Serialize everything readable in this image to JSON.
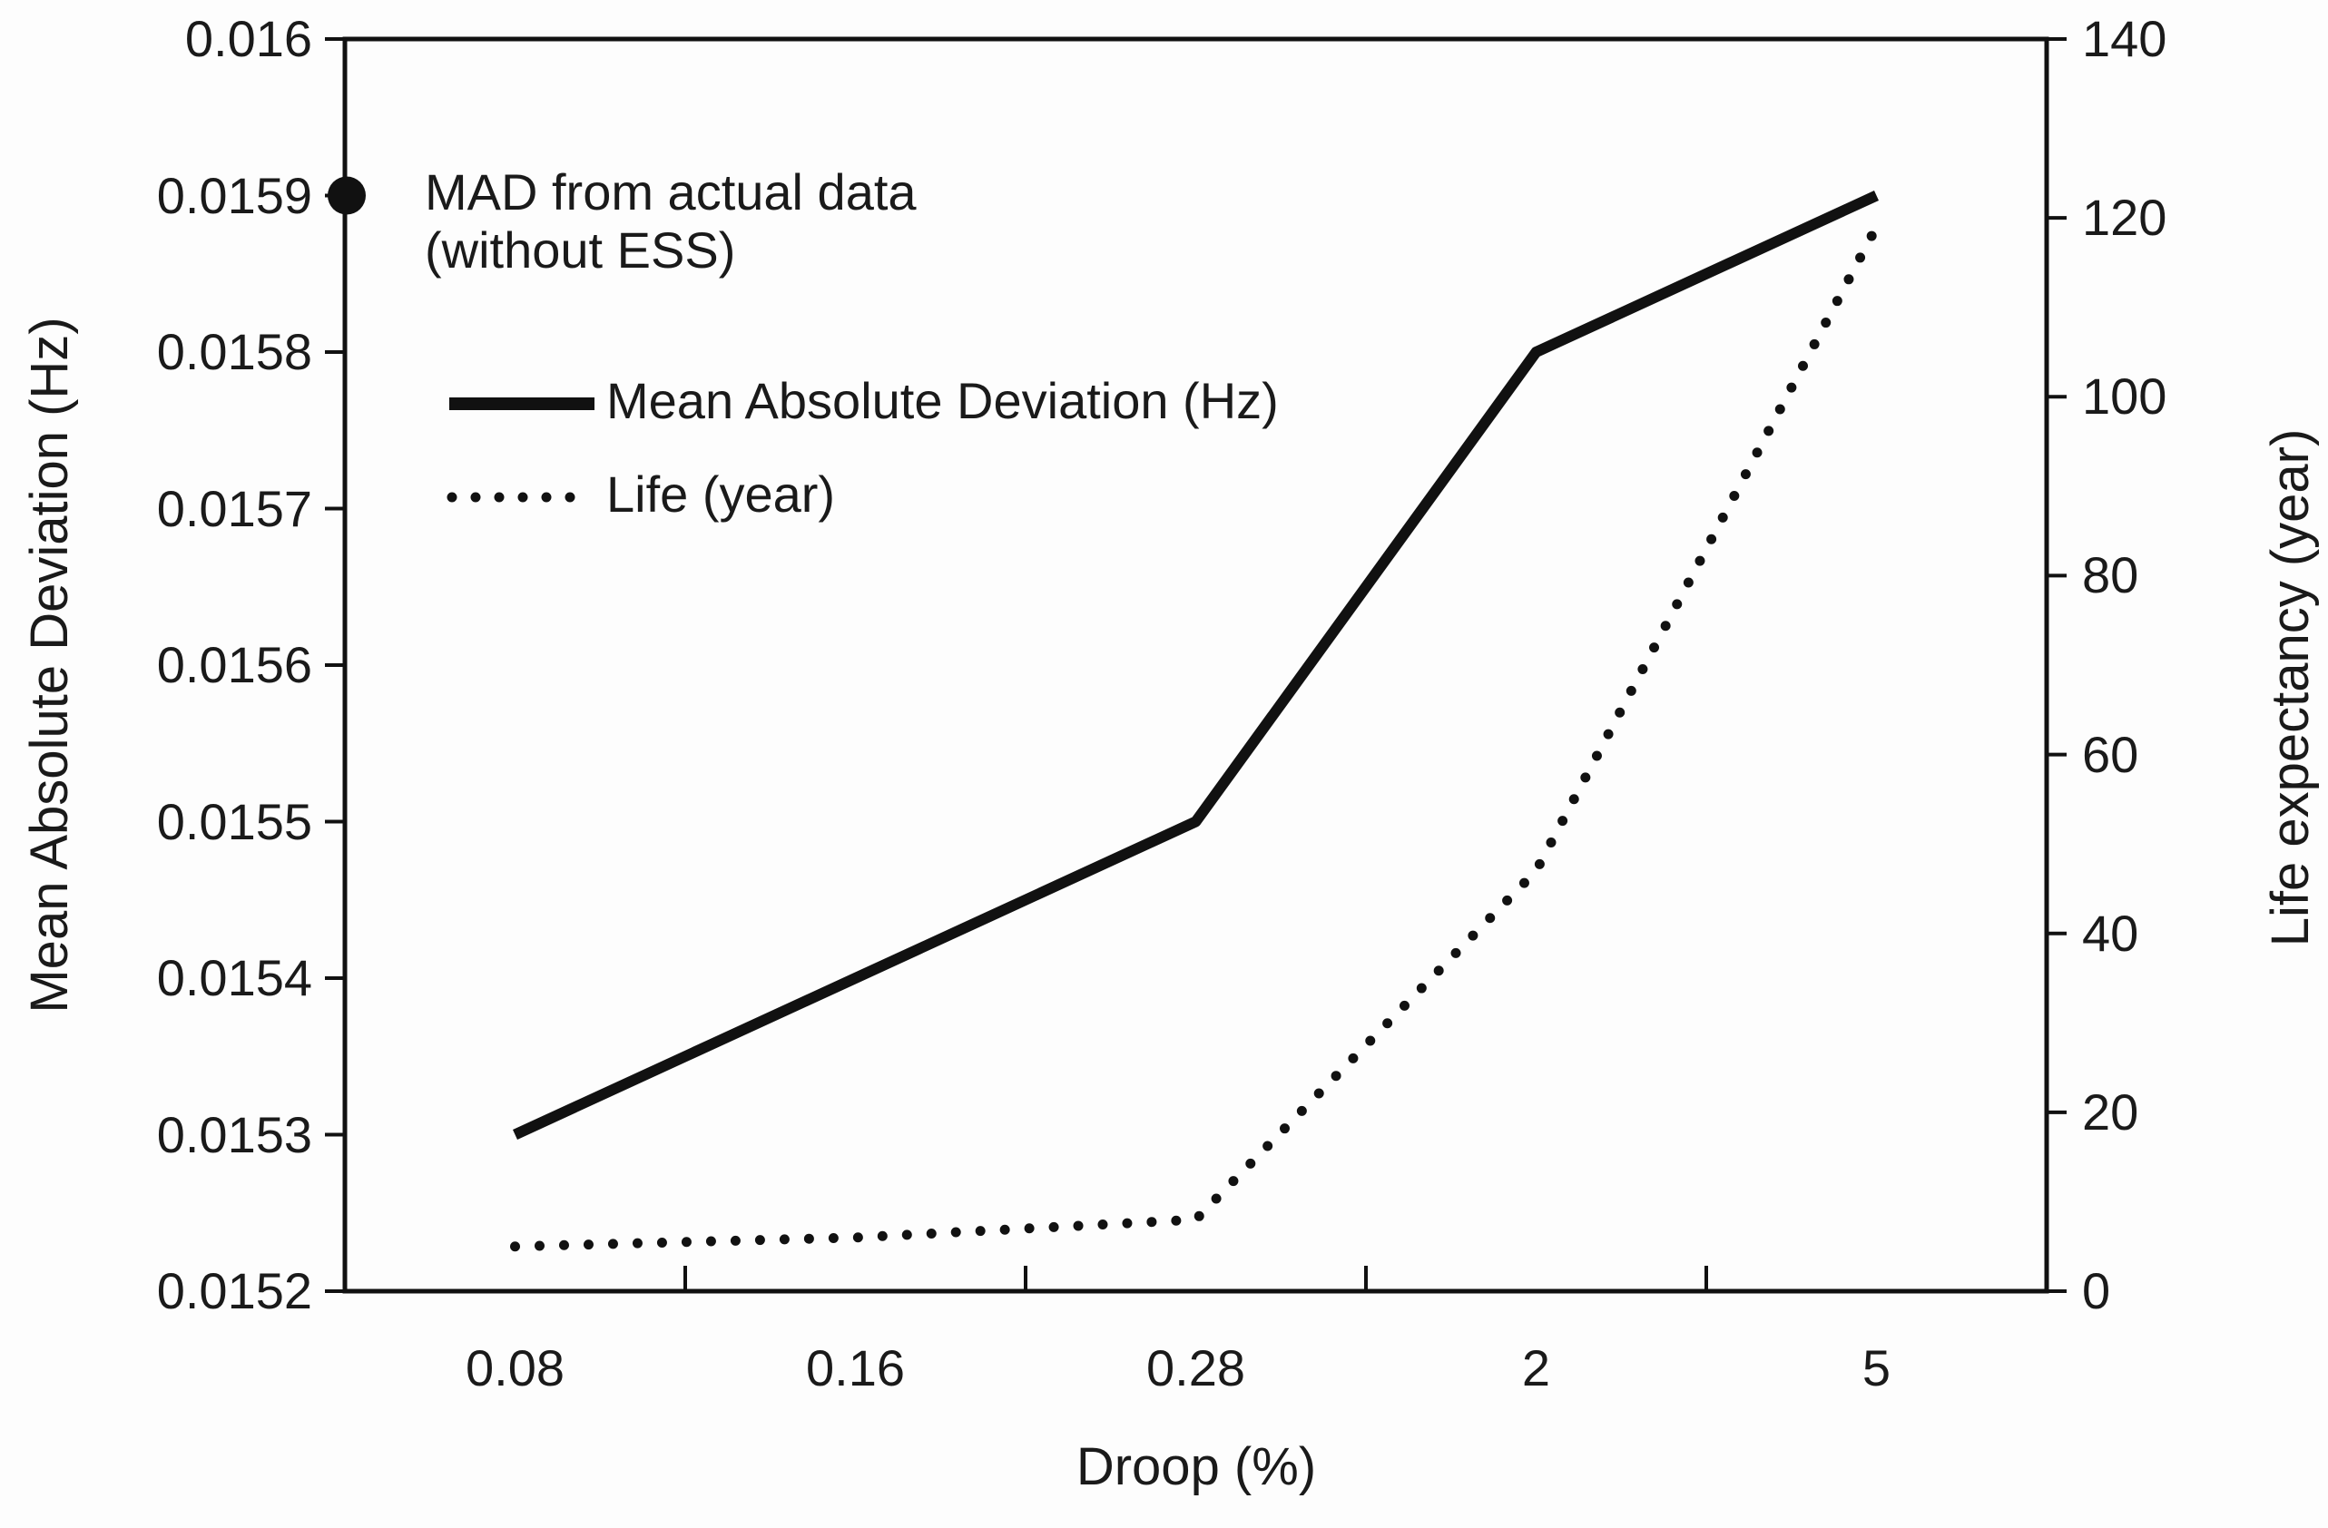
{
  "chart_data": {
    "type": "line",
    "xlabel": "Droop (%)",
    "categories": [
      "0.08",
      "0.16",
      "0.28",
      "2",
      "5"
    ],
    "left_axis": {
      "label": "Mean Absolute Deviation (Hz)",
      "min": 0.0152,
      "max": 0.016,
      "ticks": [
        "0.016",
        "0.0159",
        "0.0158",
        "0.0157",
        "0.0156",
        "0.0155",
        "0.0154",
        "0.0153",
        "0.0152"
      ]
    },
    "right_axis": {
      "label": "Life expectancy (year)",
      "min": 0,
      "max": 140,
      "ticks": [
        "140",
        "120",
        "100",
        "80",
        "60",
        "40",
        "20",
        "0"
      ]
    },
    "series": [
      {
        "name": "Mean Absolute Deviation (Hz)",
        "axis": "left",
        "style": "solid",
        "values": [
          0.0153,
          0.0154,
          0.0155,
          0.0158,
          0.0159
        ]
      },
      {
        "name": "Life (year)",
        "axis": "right",
        "style": "dotted",
        "values": [
          5,
          6,
          8,
          47,
          119
        ]
      }
    ],
    "annotation": {
      "label_lines": [
        "MAD from actual data",
        "(without ESS)"
      ],
      "value": 0.0159,
      "marker": "filled-circle"
    },
    "legend_position": "top-left-inside",
    "grid": "off",
    "colors": {
      "line": "#111111",
      "text": "#1a1a1a",
      "background": "#ffffff"
    }
  }
}
